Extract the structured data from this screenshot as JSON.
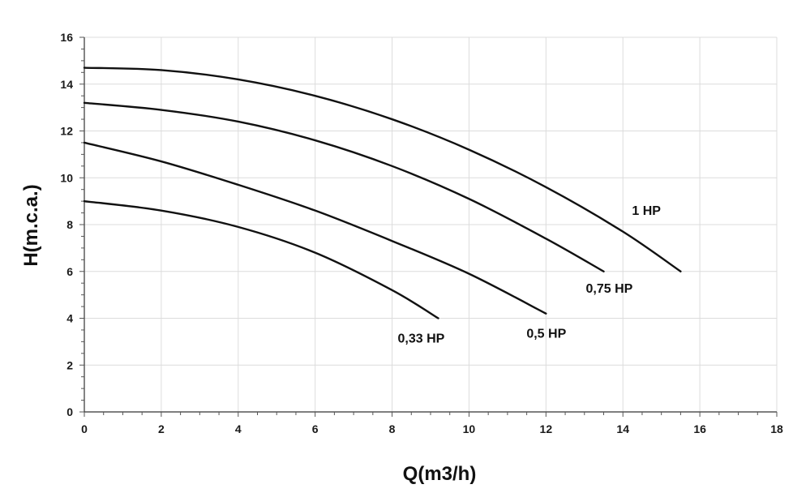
{
  "chart_data": {
    "type": "line",
    "title": "",
    "xlabel": "Q(m3/h)",
    "ylabel": "H(m.c.a.)",
    "xlim": [
      0,
      18
    ],
    "ylim": [
      0,
      16
    ],
    "xticks": [
      0,
      2,
      4,
      6,
      8,
      10,
      12,
      14,
      16,
      18
    ],
    "yticks": [
      0,
      2,
      4,
      6,
      8,
      10,
      12,
      14,
      16
    ],
    "grid": true,
    "legend": "inline labels near curve ends",
    "series": [
      {
        "name": "1 HP",
        "x": [
          0,
          2,
          4,
          6,
          8,
          10,
          12,
          14,
          15.5
        ],
        "y": [
          14.7,
          14.6,
          14.2,
          13.5,
          12.5,
          11.2,
          9.6,
          7.7,
          6.0
        ]
      },
      {
        "name": "0,75 HP",
        "x": [
          0,
          2,
          4,
          6,
          8,
          10,
          12,
          13.5
        ],
        "y": [
          13.2,
          12.9,
          12.4,
          11.6,
          10.5,
          9.1,
          7.4,
          6.0
        ]
      },
      {
        "name": "0,5 HP",
        "x": [
          0,
          2,
          4,
          6,
          8,
          10,
          12
        ],
        "y": [
          11.5,
          10.7,
          9.7,
          8.6,
          7.3,
          5.9,
          4.2
        ]
      },
      {
        "name": "0,33 HP",
        "x": [
          0,
          2,
          4,
          6,
          8,
          9.2
        ],
        "y": [
          9.0,
          8.6,
          7.9,
          6.8,
          5.2,
          4.0
        ]
      }
    ]
  }
}
